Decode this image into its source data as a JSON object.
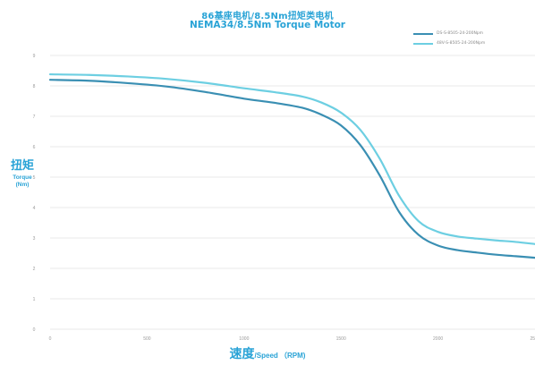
{
  "chart_data": {
    "type": "line",
    "title": "86基座电机/8.5Nm扭矩类电机",
    "subtitle": "NEMA34/8.5Nm Torque Motor",
    "ylabel_cn": "扭矩",
    "ylabel_en": "Torque",
    "ylabel_unit": "(Nm)",
    "xlabel_cn": "速度",
    "xlabel_en": "/Speed （RPM)",
    "xlim": [
      0,
      2500
    ],
    "ylim": [
      0,
      9
    ],
    "x_ticks": [
      0,
      500,
      1000,
      1500,
      2000,
      2500
    ],
    "x_tick_labels": [
      "0",
      "500",
      "1000",
      "1500",
      "2000",
      "2500"
    ],
    "y_ticks": [
      0,
      1,
      2,
      3,
      4,
      5,
      6,
      7,
      8,
      9
    ],
    "y_tick_labels": [
      "0",
      "1",
      "2",
      "3",
      "4",
      "5",
      "6",
      "7",
      "8",
      "9"
    ],
    "grid": "horizontal",
    "legend_position": "top-right",
    "series": [
      {
        "name": "DS-S-8505-24-200Npm",
        "color": "#3a8fb3",
        "x": [
          0,
          200,
          400,
          600,
          800,
          1000,
          1150,
          1300,
          1400,
          1500,
          1600,
          1700,
          1800,
          1900,
          2000,
          2100,
          2200,
          2300,
          2400,
          2500
        ],
        "y": [
          8.2,
          8.17,
          8.09,
          7.98,
          7.8,
          7.58,
          7.45,
          7.28,
          7.05,
          6.7,
          6.05,
          5.05,
          3.85,
          3.1,
          2.75,
          2.6,
          2.52,
          2.45,
          2.4,
          2.35
        ]
      },
      {
        "name": "48V-S-8505-24-200Npm",
        "color": "#6dcfe2",
        "x": [
          0,
          200,
          400,
          600,
          800,
          1000,
          1150,
          1300,
          1400,
          1500,
          1600,
          1700,
          1800,
          1900,
          2000,
          2100,
          2200,
          2300,
          2400,
          2500
        ],
        "y": [
          8.38,
          8.36,
          8.31,
          8.23,
          8.1,
          7.92,
          7.8,
          7.65,
          7.45,
          7.12,
          6.55,
          5.6,
          4.38,
          3.55,
          3.2,
          3.05,
          2.98,
          2.92,
          2.87,
          2.8
        ]
      }
    ]
  }
}
